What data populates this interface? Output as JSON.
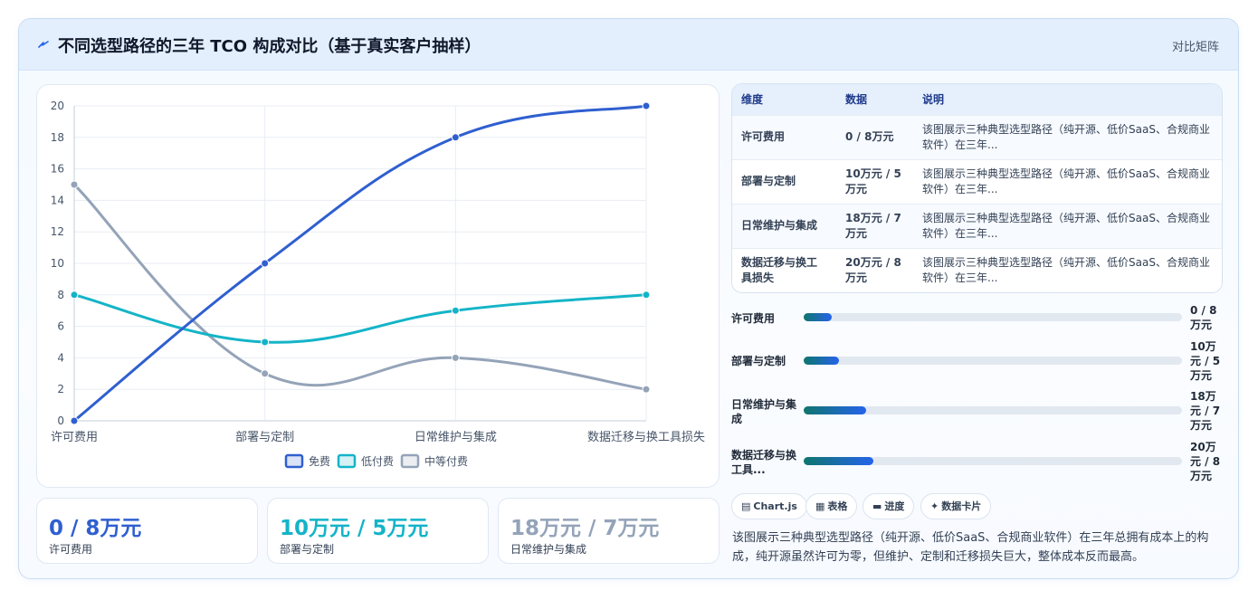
{
  "header": {
    "icon": "lightning-icon",
    "title": "不同选型路径的三年 TCO 构成对比（基于真实客户抽样）",
    "link_label": "对比矩阵"
  },
  "colors": {
    "free": "#2f5fd0",
    "low_pay": "#14b4c8",
    "mid_pay": "#94a3b8",
    "accent": "#2563eb"
  },
  "chart_data": {
    "type": "line",
    "categories": [
      "许可费用",
      "部署与定制",
      "日常维护与集成",
      "数据迁移与换工具损失"
    ],
    "series": [
      {
        "name": "免费",
        "values": [
          0,
          10,
          18,
          20
        ],
        "color": "#2f5fd0"
      },
      {
        "name": "低付费",
        "values": [
          8,
          5,
          7,
          8
        ],
        "color": "#14b4c8"
      },
      {
        "name": "中等付费",
        "values": [
          15,
          3,
          4,
          2
        ],
        "color": "#94a3b8"
      }
    ],
    "ylim": [
      0,
      20
    ],
    "yticks": [
      "0",
      "2",
      "4",
      "6",
      "8",
      "10",
      "12",
      "14",
      "16",
      "18",
      "20"
    ],
    "grid": true,
    "legend": "bottom"
  },
  "stats": [
    {
      "value": "0 / 8万元",
      "label": "许可费用",
      "color": "#2f5fd0"
    },
    {
      "value": "10万元 / 5万元",
      "label": "部署与定制",
      "color": "#14b4c8"
    },
    {
      "value": "18万元 / 7万元",
      "label": "日常维护与集成",
      "color": "#94a3b8"
    }
  ],
  "table": {
    "headers": [
      "维度",
      "数据",
      "说明"
    ],
    "rows": [
      [
        "许可费用",
        "0 / 8万元",
        "该图展示三种典型选型路径（纯开源、低价SaaS、合规商业软件）在三年..."
      ],
      [
        "部署与定制",
        "10万元 / 5万元",
        "该图展示三种典型选型路径（纯开源、低价SaaS、合规商业软件）在三年..."
      ],
      [
        "日常维护与集成",
        "18万元 / 7万元",
        "该图展示三种典型选型路径（纯开源、低价SaaS、合规商业软件）在三年..."
      ],
      [
        "数据迁移与换工具损失",
        "20万元 / 8万元",
        "该图展示三种典型选型路径（纯开源、低价SaaS、合规商业软件）在三年..."
      ]
    ]
  },
  "progress": [
    {
      "label": "许可费用",
      "value": "0 / 8万元",
      "fraction": 0.075
    },
    {
      "label": "部署与定制",
      "value": "10万元 / 5万元",
      "fraction": 0.093
    },
    {
      "label": "日常维护与集成",
      "value": "18万元 / 7万元",
      "fraction": 0.165
    },
    {
      "label": "数据迁移与换工具...",
      "value": "20万元 / 8万元",
      "fraction": 0.184
    }
  ],
  "chips": [
    {
      "icon": "chart-icon",
      "glyph": "▤",
      "label": "Chart.js"
    },
    {
      "icon": "table-icon",
      "glyph": "▦",
      "label": "表格"
    },
    {
      "icon": "progress-icon",
      "glyph": "▬",
      "label": "进度"
    },
    {
      "icon": "card-icon",
      "glyph": "✦",
      "label": "数据卡片"
    }
  ],
  "description": "该图展示三种典型选型路径（纯开源、低价SaaS、合规商业软件）在三年总拥有成本上的构成，纯开源虽然许可为零，但维护、定制和迁移损失巨大，整体成本反而最高。"
}
